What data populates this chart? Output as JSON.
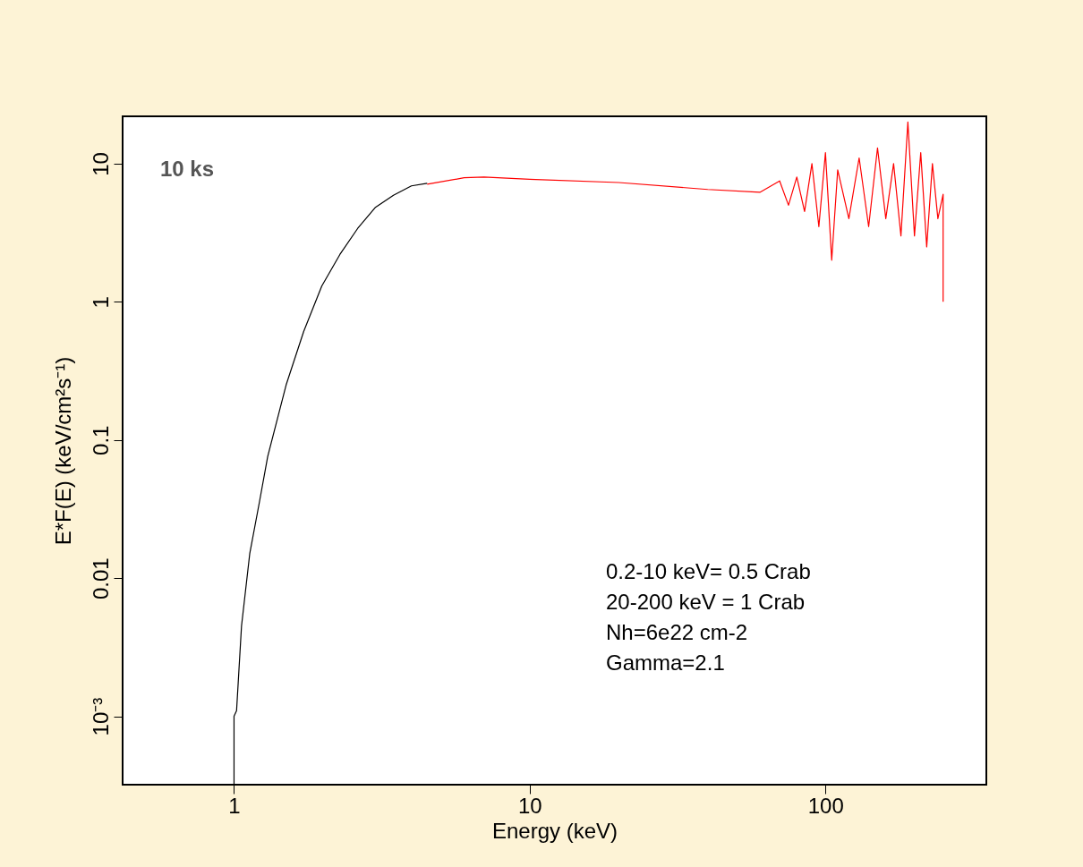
{
  "chart_data": {
    "type": "line",
    "xlabel": "Energy (keV)",
    "ylabel": "E*F(E) (keV/cm²s⁻¹)",
    "log": "xy",
    "grid": false,
    "marker": "none",
    "line_style": "solid",
    "xlim": [
      0.42,
      350
    ],
    "ylim": [
      0.00032,
      22
    ],
    "xticks": [
      1,
      10,
      100
    ],
    "yticks": [
      {
        "value": 0.001,
        "label": "10⁻³"
      },
      0.01,
      0.1,
      1,
      10
    ],
    "series": [
      {
        "color": "#000000",
        "x": [
          1.0,
          1.0,
          1.02,
          1.06,
          1.13,
          1.22,
          1.3,
          1.5,
          1.72,
          1.98,
          2.28,
          2.62,
          3.0,
          3.46,
          3.98,
          4.5
        ],
        "values": [
          0.00032,
          0.001,
          0.0011,
          0.0045,
          0.015,
          0.036,
          0.076,
          0.25,
          0.61,
          1.3,
          2.2,
          3.4,
          4.8,
          5.9,
          6.9,
          7.2
        ]
      },
      {
        "color": "#ff0000",
        "x": [
          4.5,
          6,
          7,
          10,
          20,
          40,
          60,
          70,
          75,
          80,
          85,
          90,
          95,
          100,
          105,
          110,
          120,
          130,
          140,
          150,
          160,
          170,
          180,
          190,
          200,
          210,
          220,
          230,
          240,
          250,
          250
        ],
        "values": [
          7.1,
          7.9,
          8.0,
          7.7,
          7.3,
          6.5,
          6.2,
          7.5,
          5,
          8,
          4.5,
          10,
          3.5,
          12,
          2,
          9,
          4,
          11,
          3.5,
          13,
          4,
          10,
          3,
          20,
          3,
          12,
          2.5,
          10,
          4,
          6,
          1
        ]
      }
    ],
    "annotations": [
      "10 ks",
      "0.2-10 keV= 0.5 Crab",
      "20-200 keV = 1 Crab",
      "Nh=6e22 cm-2",
      "Gamma=2.1"
    ]
  }
}
